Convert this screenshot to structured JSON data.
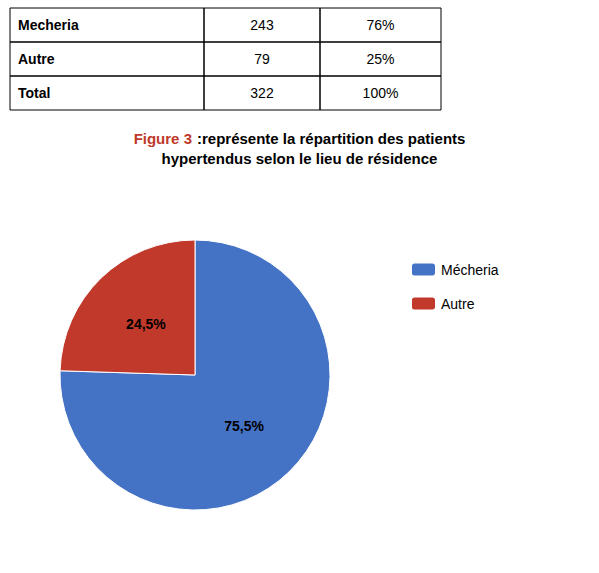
{
  "chart_data": {
    "type": "pie",
    "title": "Figure 3",
    "subtitle": ":représente la répartition des patients\nhypertendus selon le lieu de résidence",
    "table": [
      [
        "Mecheria",
        "243",
        "76%"
      ],
      [
        "Autre",
        "79",
        "25%"
      ],
      [
        "Total",
        "322",
        "100%"
      ]
    ],
    "categories": [
      "Mécheria",
      "Autre"
    ],
    "values": [
      75.5,
      24.5
    ],
    "value_labels": [
      "75,5%",
      "24,5%"
    ],
    "data_labels": true,
    "colors": [
      "#4472C4",
      "#C0392B"
    ],
    "legend": "right"
  }
}
